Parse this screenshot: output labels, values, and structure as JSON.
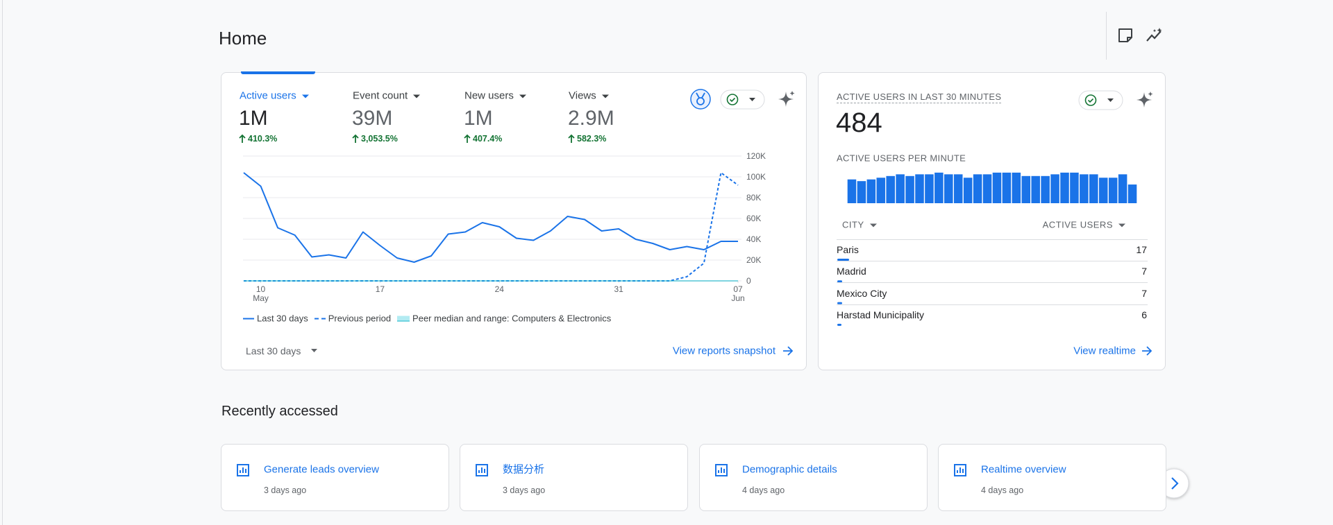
{
  "header": {
    "title": "Home"
  },
  "overview": {
    "metrics": [
      {
        "name": "Active users",
        "value": "1M",
        "change": "410.3%"
      },
      {
        "name": "Event count",
        "value": "39M",
        "change": "3,053.5%"
      },
      {
        "name": "New users",
        "value": "1M",
        "change": "407.4%"
      },
      {
        "name": "Views",
        "value": "2.9M",
        "change": "582.3%"
      }
    ],
    "date_range": "Last 30 days",
    "link": "View reports snapshot"
  },
  "chart_data": [
    {
      "type": "line",
      "categories": [
        null,
        "10 May",
        null,
        null,
        null,
        null,
        null,
        null,
        "17",
        null,
        null,
        null,
        null,
        null,
        null,
        "24",
        null,
        null,
        null,
        null,
        null,
        null,
        "31",
        null,
        null,
        null,
        null,
        null,
        null,
        "07 Jun"
      ],
      "series": [
        {
          "name": "Last 30 days",
          "color": "#1a73e8",
          "values": [
            104000,
            91000,
            51000,
            44000,
            23000,
            25000,
            22000,
            47000,
            34000,
            22000,
            18000,
            24000,
            45000,
            47000,
            56000,
            52000,
            41000,
            39000,
            48000,
            62000,
            59000,
            48000,
            50000,
            40000,
            36000,
            30000,
            33000,
            30000,
            38000,
            38000
          ]
        },
        {
          "name": "Previous period",
          "color": "#1a73e8",
          "dashed": true,
          "values": [
            0,
            0,
            0,
            0,
            0,
            0,
            0,
            0,
            0,
            0,
            0,
            0,
            0,
            0,
            0,
            0,
            0,
            0,
            0,
            0,
            0,
            0,
            0,
            0,
            0,
            0,
            4000,
            17000,
            104000,
            92000
          ]
        },
        {
          "name": "Peer median and range: Computers & Electronics",
          "color": "#12b5cb",
          "band": true,
          "values": [
            0,
            0,
            0,
            0,
            0,
            0,
            0,
            0,
            0,
            0,
            0,
            0,
            0,
            0,
            0,
            0,
            0,
            0,
            0,
            0,
            0,
            0,
            0,
            0,
            0,
            0,
            0,
            0,
            0,
            0
          ]
        }
      ],
      "ylim": [
        0,
        120000
      ],
      "yticks": [
        0,
        {
          "value": 20000,
          "label": "20K"
        },
        {
          "value": 40000,
          "label": "40K"
        },
        {
          "value": 60000,
          "label": "60K"
        },
        {
          "value": 80000,
          "label": "80K"
        },
        {
          "value": 100000,
          "label": "100K"
        },
        {
          "value": 120000,
          "label": "120K"
        }
      ],
      "grid": true,
      "legend": "bottom"
    },
    {
      "type": "bar",
      "title": "ACTIVE USERS PER MINUTE",
      "color": "#1a73e8",
      "values": [
        14,
        13,
        14,
        15,
        16,
        17,
        16,
        17,
        17,
        18,
        17,
        17,
        15,
        17,
        17,
        18,
        18,
        18,
        16,
        16,
        16,
        17,
        18,
        18,
        17,
        17,
        15,
        15,
        17,
        11
      ]
    }
  ],
  "realtime": {
    "title": "ACTIVE USERS IN LAST 30 MINUTES",
    "value": 484,
    "table": {
      "headers": [
        "CITY",
        "ACTIVE USERS"
      ],
      "rows": [
        [
          "Paris",
          17
        ],
        [
          "Madrid",
          7
        ],
        [
          "Mexico City",
          7
        ],
        [
          "Harstad Municipality",
          6
        ]
      ]
    },
    "link": "View realtime"
  },
  "recent": {
    "title": "Recently accessed",
    "items": [
      {
        "title": "Generate leads overview",
        "time": "3 days ago"
      },
      {
        "title": "数据分析",
        "time": "3 days ago"
      },
      {
        "title": "Demographic details",
        "time": "4 days ago"
      },
      {
        "title": "Realtime overview",
        "time": "4 days ago"
      }
    ]
  }
}
